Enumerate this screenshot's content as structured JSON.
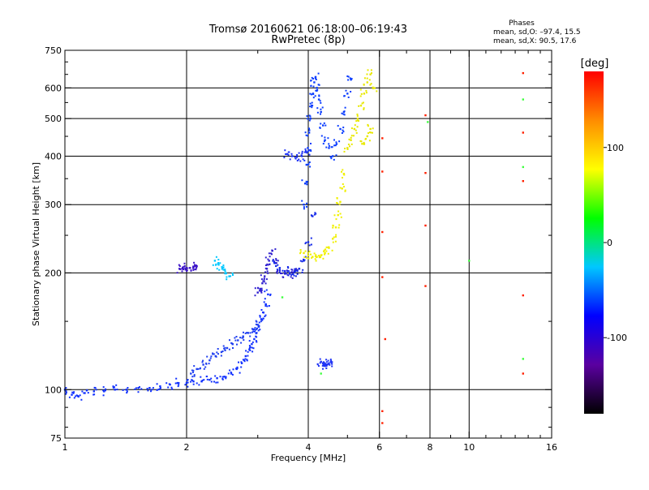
{
  "chart_data": {
    "type": "scatter",
    "title": "Tromsø 20160621 06:18:00–06:19:43",
    "subtitle": "RwPretec (8p)",
    "xlabel": "Frequency [MHz]",
    "ylabel": "Stationary phase Virtual Height [km]",
    "x_scale": "log",
    "y_scale": "log",
    "xlim": [
      1,
      16
    ],
    "ylim": [
      75,
      750
    ],
    "x_ticks": [
      1,
      2,
      4,
      6,
      8,
      10,
      16
    ],
    "x_minor_ticks": [
      3,
      5,
      7,
      9,
      11,
      12,
      13,
      14,
      15
    ],
    "y_ticks": [
      75,
      100,
      200,
      300,
      400,
      500,
      600,
      750
    ],
    "y_minor_ticks": [
      80,
      90,
      150,
      250,
      350,
      450,
      550,
      650,
      700
    ],
    "grid_x": [
      2,
      4,
      6,
      8,
      10
    ],
    "grid_y": [
      100,
      200,
      300,
      400,
      500,
      600
    ],
    "legend_title": "Phases",
    "legend_lines": [
      "mean, sd,O: –97.4, 15.5",
      "mean, sd,X:  90.5, 17.6"
    ],
    "legend_position": "top-right",
    "colorbar": {
      "label": "[deg]",
      "range": [
        -180,
        180
      ],
      "ticks": [
        100,
        0,
        -100
      ],
      "colors": [
        "#000000",
        "#5a00a0",
        "#0000ff",
        "#00c8ff",
        "#00ff00",
        "#ffff00",
        "#ff8c00",
        "#ff0000"
      ]
    },
    "series": [
      {
        "phase": -100,
        "color": "#1030ff",
        "x": [
          1.0,
          1.04,
          1.08,
          1.12,
          1.18,
          1.25,
          1.33,
          1.42,
          1.52,
          1.62,
          1.72,
          1.82,
          1.9,
          2.0,
          2.08,
          2.18,
          2.28,
          2.38,
          2.48,
          2.58,
          2.66,
          2.74,
          2.8,
          2.86,
          2.9,
          2.94,
          2.98,
          3.02,
          3.06,
          3.1,
          3.14,
          3.18
        ],
        "y": [
          100,
          97,
          96,
          98,
          99,
          99,
          100,
          100,
          101,
          101,
          102,
          103,
          104,
          104,
          105,
          105,
          106,
          107,
          108,
          110,
          113,
          117,
          122,
          127,
          131,
          135,
          140,
          146,
          152,
          158,
          166,
          176
        ]
      },
      {
        "phase": -110,
        "color": "#2040f0",
        "x": [
          2.05,
          2.12,
          2.2,
          2.28,
          2.36,
          2.44,
          2.52,
          2.6,
          2.68,
          2.76,
          2.84,
          2.92,
          3.0
        ],
        "y": [
          110,
          113,
          116,
          119,
          122,
          125,
          128,
          131,
          134,
          137,
          140,
          143,
          147
        ]
      },
      {
        "phase": -120,
        "color": "#3020d0",
        "x": [
          3.0,
          3.04,
          3.08,
          3.12,
          3.16,
          3.2,
          3.26,
          3.32,
          3.4,
          3.5,
          3.6,
          3.7
        ],
        "y": [
          178,
          182,
          188,
          196,
          205,
          215,
          228,
          212,
          203,
          199,
          199,
          202
        ]
      },
      {
        "phase": -105,
        "color": "#1428e8",
        "x": [
          3.3,
          3.4,
          3.5,
          3.6,
          3.7,
          3.8,
          3.9,
          4.0,
          4.1
        ],
        "y": [
          212,
          206,
          202,
          200,
          201,
          205,
          215,
          240,
          280
        ]
      },
      {
        "phase": -100,
        "color": "#0a3cff",
        "x": [
          3.9,
          3.93,
          3.96,
          3.99,
          4.02,
          4.05,
          4.08,
          4.11,
          4.14,
          4.17,
          4.2,
          4.25,
          4.3,
          4.35,
          4.4,
          4.5,
          4.6,
          4.7,
          4.8,
          4.9,
          5.0,
          5.1
        ],
        "y": [
          300,
          340,
          380,
          420,
          460,
          500,
          540,
          580,
          620,
          640,
          600,
          560,
          520,
          480,
          440,
          420,
          400,
          430,
          470,
          520,
          580,
          630
        ]
      },
      {
        "phase": -110,
        "color": "#1e32f5",
        "x": [
          3.55,
          3.65,
          3.75,
          3.85,
          3.95,
          4.3,
          4.35,
          4.4,
          4.45,
          4.5,
          4.55
        ],
        "y": [
          405,
          400,
          398,
          402,
          410,
          118,
          117,
          116,
          116,
          117,
          118
        ]
      },
      {
        "phase": -115,
        "color": "#3c14c8",
        "x": [
          1.92,
          1.96,
          2.0,
          2.04,
          2.08,
          2.12
        ],
        "y": [
          205,
          205,
          206,
          206,
          207,
          208
        ]
      },
      {
        "phase": 100,
        "color": "#f0f000",
        "x": [
          3.9,
          4.0,
          4.1,
          4.2,
          4.3,
          4.4,
          4.5,
          4.6,
          4.68,
          4.74,
          4.8,
          4.85,
          4.9
        ],
        "y": [
          225,
          222,
          220,
          220,
          222,
          225,
          232,
          245,
          262,
          282,
          305,
          330,
          360
        ]
      },
      {
        "phase": 95,
        "color": "#e8e800",
        "x": [
          5.0,
          5.1,
          5.2,
          5.3,
          5.4,
          5.5,
          5.6,
          5.7,
          5.8,
          5.5,
          5.6,
          5.7
        ],
        "y": [
          420,
          440,
          470,
          500,
          540,
          580,
          620,
          650,
          600,
          430,
          450,
          470
        ]
      },
      {
        "phase": -20,
        "color": "#00c8ff",
        "x": [
          2.35,
          2.4,
          2.45,
          2.5,
          2.55
        ],
        "y": [
          215,
          210,
          205,
          200,
          196
        ]
      },
      {
        "phase": 160,
        "color": "#ff2000",
        "x": [
          6.1,
          6.1,
          6.1,
          6.1,
          6.1,
          6.1,
          6.2,
          7.8,
          7.8,
          7.8,
          7.8,
          13.6,
          13.6,
          13.6,
          13.6,
          13.6
        ],
        "y": [
          445,
          365,
          255,
          195,
          88,
          82,
          135,
          510,
          362,
          265,
          185,
          655,
          460,
          345,
          110,
          175
        ]
      },
      {
        "phase": 30,
        "color": "#40ff40",
        "x": [
          3.45,
          4.3,
          7.9,
          10.0,
          13.6,
          13.6,
          13.6
        ],
        "y": [
          173,
          110,
          490,
          215,
          120,
          560,
          375
        ]
      }
    ]
  }
}
